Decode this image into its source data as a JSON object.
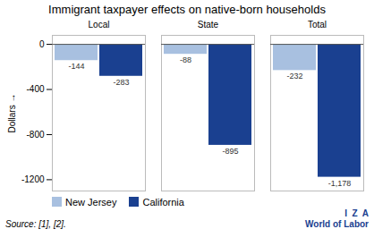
{
  "chart_data": {
    "type": "bar",
    "title": "Immigrant taxpayer effects on native-born households",
    "categories": [
      "Local",
      "State",
      "Total"
    ],
    "series": [
      {
        "name": "New Jersey",
        "color": "#a8c0e0",
        "values": [
          -144,
          -88,
          -232
        ]
      },
      {
        "name": "California",
        "color": "#1a4090",
        "values": [
          -283,
          -895,
          -1178
        ],
        "value_labels": [
          "-283",
          "-895",
          "-1,178"
        ]
      }
    ],
    "ylabel": "Dollars",
    "ylim": [
      -1300,
      80
    ],
    "yticks": [
      0,
      -400,
      -800,
      -1200
    ],
    "grid": false,
    "legend": "lower left",
    "data_labels": true,
    "annotations": [
      "Source: [1], [2].",
      "I  Z  A",
      "World of Labor"
    ]
  }
}
